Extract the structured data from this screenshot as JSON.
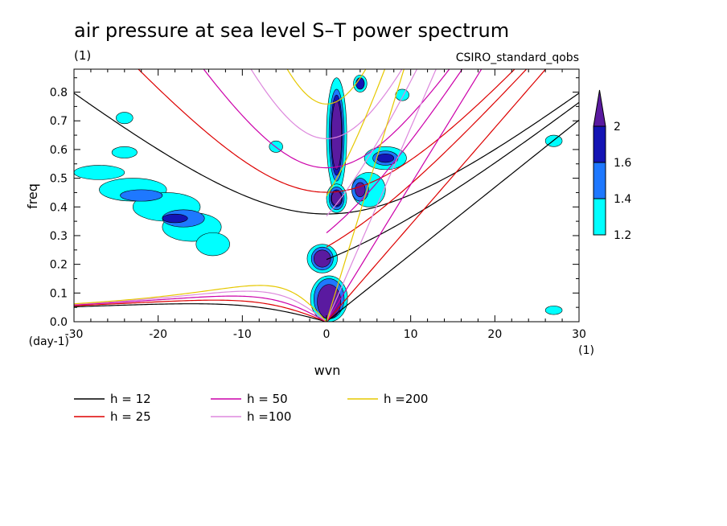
{
  "chart_data": {
    "type": "heatmap",
    "title": "air pressure at sea level S–T power spectrum",
    "title_units": "(1)",
    "model": "CSIRO_standard_qobs",
    "xlabel": "wvn",
    "ylabel": "freq",
    "x_units": "(1)",
    "y_units": "(day-1)",
    "xlim": [
      -30,
      30
    ],
    "ylim": [
      0,
      0.88
    ],
    "xticks": [
      -30,
      -20,
      -10,
      0,
      10,
      20,
      30
    ],
    "yticks": [
      0.0,
      0.1,
      0.2,
      0.3,
      0.4,
      0.5,
      0.6,
      0.7,
      0.8
    ],
    "colorbar": {
      "levels": [
        1.2,
        1.4,
        1.6,
        2
      ],
      "colors": [
        "#00ffff",
        "#1e78ff",
        "#1414b4",
        "#5a1aa0"
      ]
    },
    "dispersion_curves": [
      {
        "label": "h = 12",
        "h": 12,
        "color": "#000000"
      },
      {
        "label": "h = 25",
        "h": 25,
        "color": "#dd0000"
      },
      {
        "label": "h = 50",
        "h": 50,
        "color": "#cc00aa"
      },
      {
        "label": "h =100",
        "h": 100,
        "color": "#dd88dd"
      },
      {
        "label": "h =200",
        "h": 200,
        "color": "#e6c800"
      }
    ],
    "regions": [
      {
        "level": 1.2,
        "x": -27,
        "y": 0.52,
        "rx": 3,
        "ry": 0.025
      },
      {
        "level": 1.2,
        "x": -23,
        "y": 0.46,
        "rx": 4,
        "ry": 0.04
      },
      {
        "level": 1.2,
        "x": -19,
        "y": 0.4,
        "rx": 4,
        "ry": 0.05
      },
      {
        "level": 1.2,
        "x": -16,
        "y": 0.33,
        "rx": 3.5,
        "ry": 0.05
      },
      {
        "level": 1.2,
        "x": -13.5,
        "y": 0.27,
        "rx": 2,
        "ry": 0.04
      },
      {
        "level": 1.2,
        "x": -24,
        "y": 0.59,
        "rx": 1.5,
        "ry": 0.02
      },
      {
        "level": 1.2,
        "x": -24,
        "y": 0.71,
        "rx": 1,
        "ry": 0.02
      },
      {
        "level": 1.2,
        "x": -6,
        "y": 0.61,
        "rx": 0.8,
        "ry": 0.02
      },
      {
        "level": 1.2,
        "x": 1.2,
        "y": 0.65,
        "rx": 1.2,
        "ry": 0.2
      },
      {
        "level": 1.2,
        "x": 1.2,
        "y": 0.43,
        "rx": 1.2,
        "ry": 0.05
      },
      {
        "level": 1.2,
        "x": -0.5,
        "y": 0.22,
        "rx": 1.8,
        "ry": 0.05
      },
      {
        "level": 1.2,
        "x": 0.3,
        "y": 0.08,
        "rx": 2.2,
        "ry": 0.08
      },
      {
        "level": 1.2,
        "x": 5,
        "y": 0.46,
        "rx": 2,
        "ry": 0.06
      },
      {
        "level": 1.2,
        "x": 7,
        "y": 0.57,
        "rx": 2.5,
        "ry": 0.04
      },
      {
        "level": 1.2,
        "x": 4,
        "y": 0.83,
        "rx": 0.8,
        "ry": 0.03
      },
      {
        "level": 1.2,
        "x": 9,
        "y": 0.79,
        "rx": 0.8,
        "ry": 0.02
      },
      {
        "level": 1.2,
        "x": 27,
        "y": 0.63,
        "rx": 1,
        "ry": 0.02
      },
      {
        "level": 1.2,
        "x": 27,
        "y": 0.04,
        "rx": 1,
        "ry": 0.015
      },
      {
        "level": 1.4,
        "x": -22,
        "y": 0.44,
        "rx": 2.5,
        "ry": 0.02
      },
      {
        "level": 1.4,
        "x": -17,
        "y": 0.36,
        "rx": 2.5,
        "ry": 0.03
      },
      {
        "level": 1.4,
        "x": 1.2,
        "y": 0.65,
        "rx": 0.9,
        "ry": 0.16
      },
      {
        "level": 1.4,
        "x": 1.2,
        "y": 0.43,
        "rx": 0.9,
        "ry": 0.04
      },
      {
        "level": 1.4,
        "x": -0.5,
        "y": 0.22,
        "rx": 1.3,
        "ry": 0.04
      },
      {
        "level": 1.4,
        "x": 0.3,
        "y": 0.08,
        "rx": 1.8,
        "ry": 0.07
      },
      {
        "level": 1.4,
        "x": 7,
        "y": 0.57,
        "rx": 1.5,
        "ry": 0.025
      },
      {
        "level": 1.4,
        "x": 4,
        "y": 0.46,
        "rx": 1,
        "ry": 0.04
      },
      {
        "level": 1.6,
        "x": -18,
        "y": 0.36,
        "rx": 1.5,
        "ry": 0.015
      },
      {
        "level": 1.6,
        "x": 1.2,
        "y": 0.65,
        "rx": 0.7,
        "ry": 0.14
      },
      {
        "level": 1.6,
        "x": 1.2,
        "y": 0.43,
        "rx": 0.7,
        "ry": 0.03
      },
      {
        "level": 1.6,
        "x": 4,
        "y": 0.83,
        "rx": 0.5,
        "ry": 0.02
      },
      {
        "level": 1.6,
        "x": 7,
        "y": 0.57,
        "rx": 1,
        "ry": 0.015
      },
      {
        "level": 2,
        "x": 1.2,
        "y": 0.65,
        "rx": 0.6,
        "ry": 0.12
      },
      {
        "level": 2,
        "x": 1.2,
        "y": 0.43,
        "rx": 0.6,
        "ry": 0.025
      },
      {
        "level": 2,
        "x": -0.5,
        "y": 0.22,
        "rx": 1,
        "ry": 0.03
      },
      {
        "level": 2,
        "x": 0.3,
        "y": 0.07,
        "rx": 1.4,
        "ry": 0.06
      },
      {
        "level": 2,
        "x": 4,
        "y": 0.46,
        "rx": 0.6,
        "ry": 0.025
      }
    ]
  }
}
